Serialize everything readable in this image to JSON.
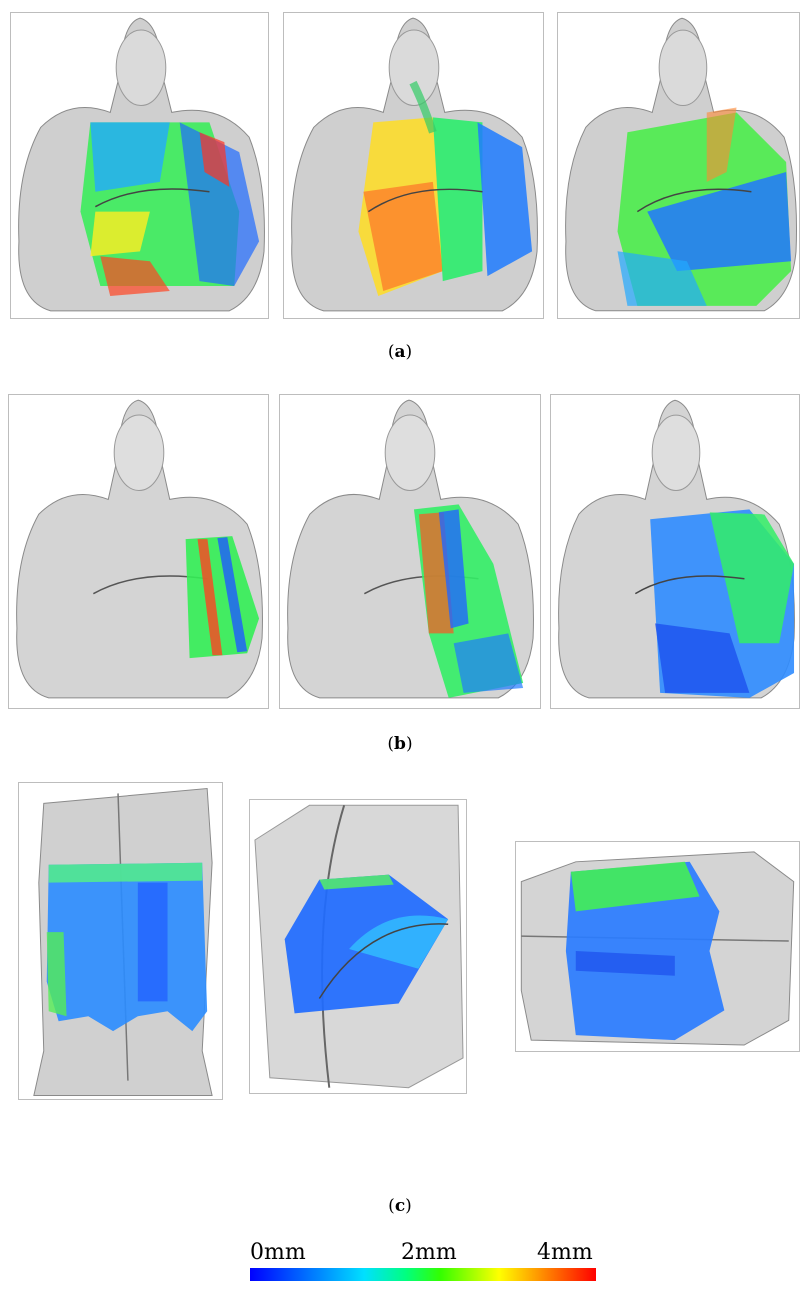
{
  "figure": {
    "rows": [
      {
        "label_open": "(",
        "label_letter": "a",
        "label_close": ")",
        "panels": [
          "statue-front-overlay-1",
          "statue-front-overlay-2",
          "statue-front-overlay-3"
        ]
      },
      {
        "label_open": "(",
        "label_letter": "b",
        "label_close": ")",
        "panels": [
          "statue-front-patch-1",
          "statue-front-patch-2",
          "statue-front-patch-3"
        ]
      },
      {
        "label_open": "(",
        "label_letter": "c",
        "label_close": ")",
        "panels": [
          "statue-lower-body-patch",
          "statue-curved-detail-patch",
          "statue-base-patch"
        ]
      }
    ]
  },
  "colorbar": {
    "labels": [
      "0mm",
      "2mm",
      "4mm"
    ],
    "range_mm": [
      0,
      4
    ],
    "colors": [
      "#0000ff",
      "#00e0ff",
      "#00ff80",
      "#ffff00",
      "#ff0000"
    ]
  }
}
